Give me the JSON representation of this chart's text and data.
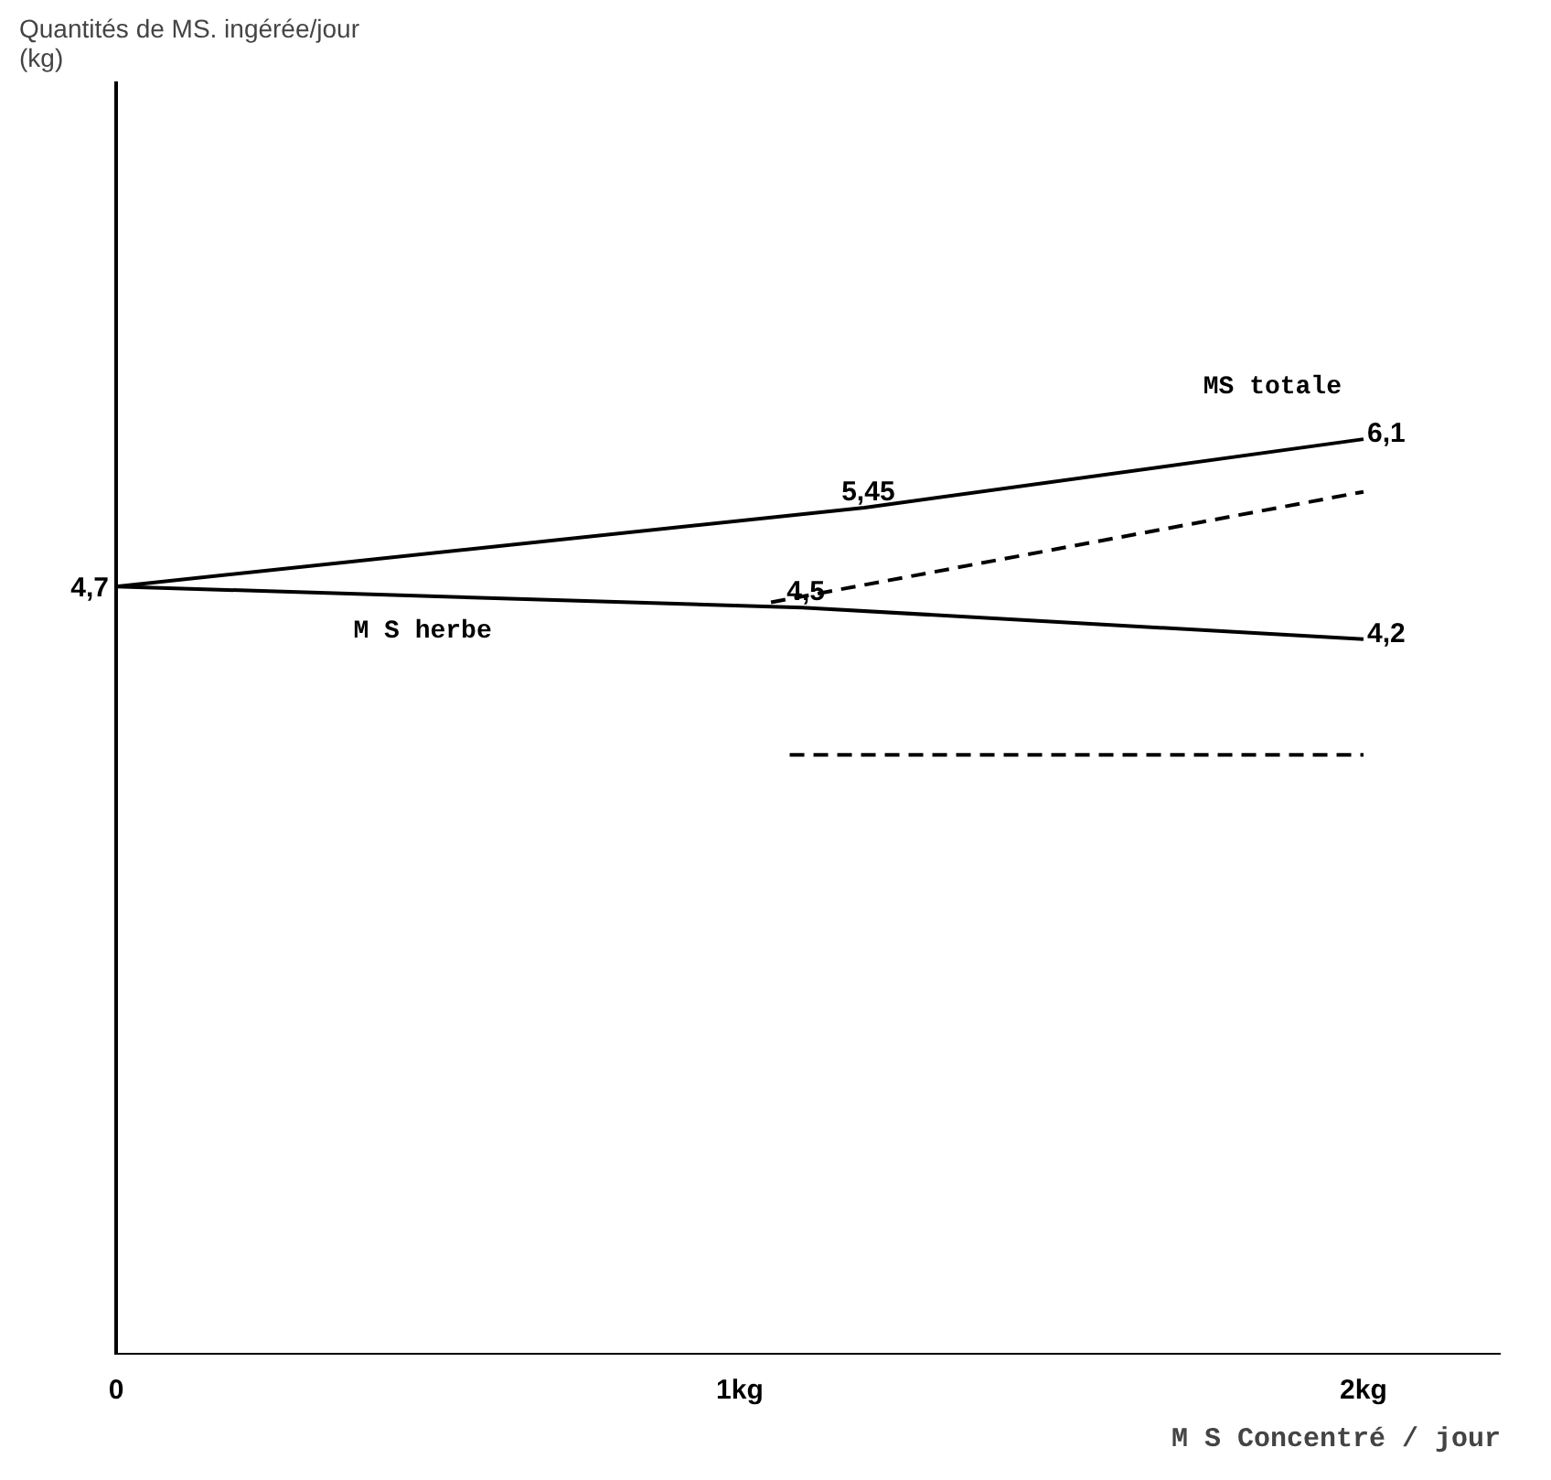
{
  "chart_data": {
    "type": "line",
    "ylabel": "Quantités de MS. ingérée/jour\n(kg)",
    "xlabel": "M S Concentré / jour",
    "xlim": [
      0,
      2.22
    ],
    "xticks": [
      0,
      {
        "value": 1,
        "label": "1kg"
      },
      {
        "value": 2,
        "label": "2kg"
      }
    ],
    "ylim": [
      -2.6,
      9.5
    ],
    "annotations": [
      {
        "text": "4,7",
        "x": 0,
        "y": 4.7
      }
    ],
    "grid": false,
    "legend": false,
    "marker": "none",
    "series": [
      {
        "name": "MS totale",
        "color": "#000000",
        "x": [
          0,
          1.2,
          2
        ],
        "values": [
          4.7,
          5.45,
          6.1
        ],
        "value_labels": [
          null,
          "5,45",
          "6,1"
        ],
        "line_style": "solid"
      },
      {
        "name": "M S herbe",
        "color": "#000000",
        "x": [
          0,
          1.1,
          2
        ],
        "values": [
          4.7,
          4.5,
          4.2
        ],
        "value_labels": [
          null,
          "4,5",
          "4,2"
        ],
        "line_style": "solid"
      },
      {
        "color": "#000000",
        "x": [
          1.05,
          2
        ],
        "values": [
          4.55,
          5.6
        ],
        "line_style": "dashed"
      },
      {
        "color": "#000000",
        "x": [
          1.08,
          2
        ],
        "values": [
          3.1,
          3.1
        ],
        "line_style": "dashed"
      }
    ]
  }
}
